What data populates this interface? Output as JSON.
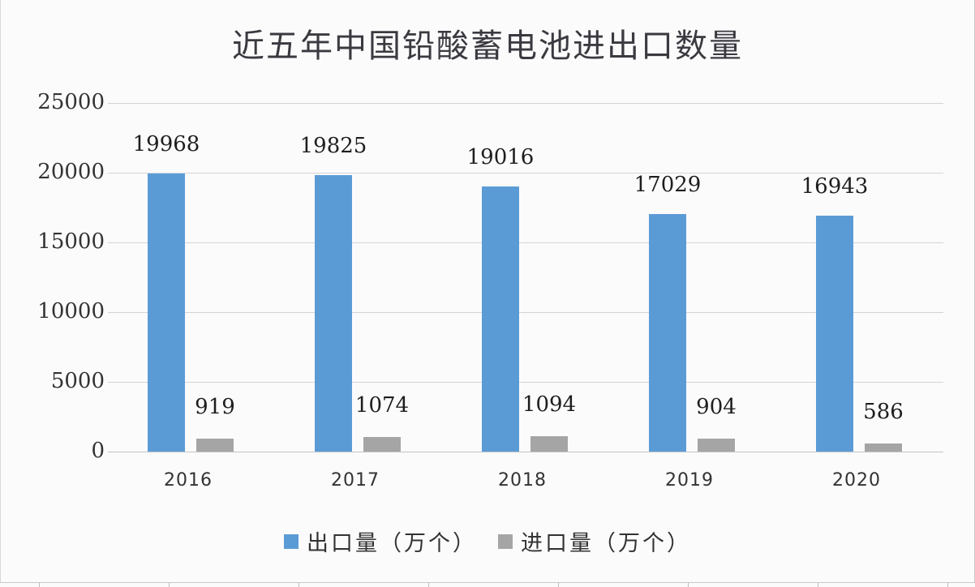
{
  "title": "近五年中国铅酸蓄电池进出口数量",
  "colors": {
    "export": "#5b9bd5",
    "import": "#a5a5a5",
    "grid": "#d4d4d8",
    "background": "#fbfbfc"
  },
  "yaxis": {
    "ticks": [
      "25000",
      "20000",
      "15000",
      "10000",
      "5000",
      "0"
    ]
  },
  "xaxis": {
    "ticks": [
      "2016",
      "2017",
      "2018",
      "2019",
      "2020"
    ]
  },
  "legend": {
    "items": [
      {
        "label": "出口量（万个）",
        "color": "#5b9bd5"
      },
      {
        "label": "进口量（万个）",
        "color": "#a5a5a5"
      }
    ]
  },
  "labels": {
    "export": [
      "19968",
      "19825",
      "19016",
      "17029",
      "16943"
    ],
    "import": [
      "919",
      "1074",
      "1094",
      "904",
      "586"
    ]
  },
  "chart_data": {
    "type": "bar",
    "title": "近五年中国铅酸蓄电池进出口数量",
    "xlabel": "",
    "ylabel": "",
    "categories": [
      "2016",
      "2017",
      "2018",
      "2019",
      "2020"
    ],
    "series": [
      {
        "name": "出口量（万个）",
        "color": "#5b9bd5",
        "values": [
          19968,
          19825,
          19016,
          17029,
          16943
        ]
      },
      {
        "name": "进口量（万个）",
        "color": "#a5a5a5",
        "values": [
          919,
          1074,
          1094,
          904,
          586
        ]
      }
    ],
    "ylim": [
      0,
      25000
    ],
    "yticks": [
      0,
      5000,
      10000,
      15000,
      20000,
      25000
    ],
    "grid": true,
    "legend_position": "bottom",
    "data_labels": true
  }
}
